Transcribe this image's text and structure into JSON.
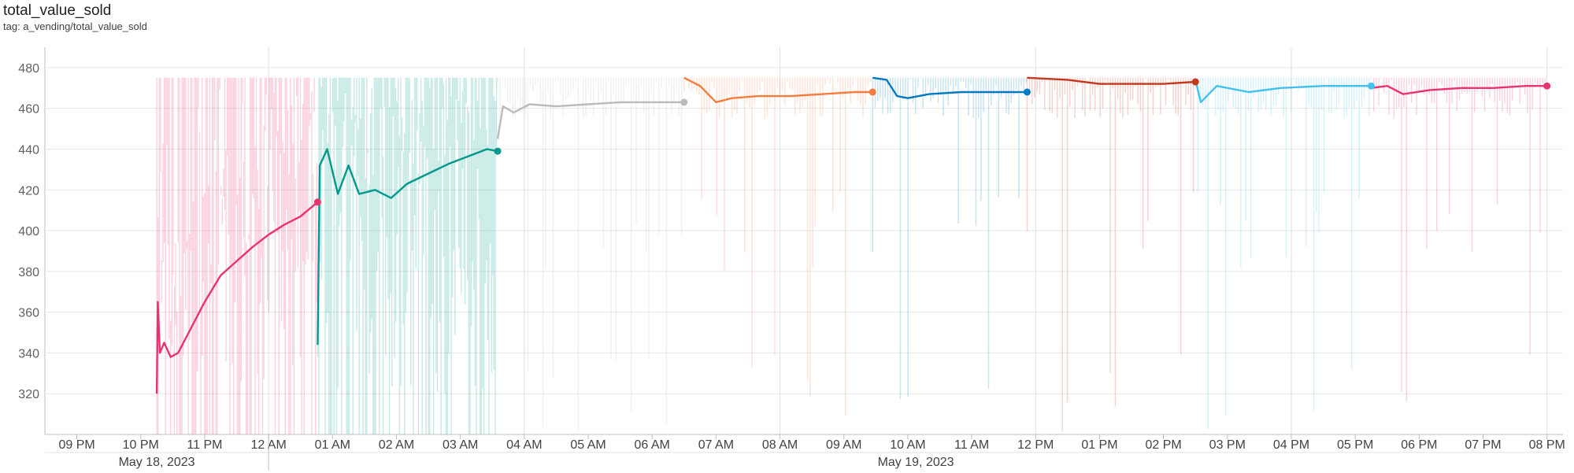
{
  "header": {
    "title": "total_value_sold",
    "tag": "tag: a_vending/total_value_sold"
  },
  "chart_data": {
    "type": "line",
    "title": "total_value_sold",
    "subtitle": "tag: a_vending/total_value_sold",
    "ylim": [
      300,
      490
    ],
    "yticks": [
      320,
      340,
      360,
      380,
      400,
      420,
      440,
      460,
      480
    ],
    "x_hour_ticks": [
      "09 PM",
      "10 PM",
      "11 PM",
      "12 AM",
      "01 AM",
      "02 AM",
      "03 AM",
      "04 AM",
      "05 AM",
      "06 AM",
      "07 AM",
      "08 AM",
      "09 AM",
      "10 AM",
      "11 AM",
      "12 PM",
      "01 PM",
      "02 PM",
      "03 PM",
      "04 PM",
      "05 PM",
      "06 PM",
      "07 PM",
      "08 PM"
    ],
    "x_date_labels": [
      "May 18, 2023",
      "May 19, 2023"
    ],
    "x_range": [
      "2023-05-18 20:30",
      "2023-05-19 20:15"
    ],
    "grid": true,
    "legend": "none",
    "series": [
      {
        "color": "#e8336e",
        "start": "2023-05-18 22:15",
        "end": "2023-05-19 00:46",
        "points": [
          [
            "22:15",
            320
          ],
          [
            "22:16",
            365
          ],
          [
            "22:18",
            340
          ],
          [
            "22:22",
            345
          ],
          [
            "22:28",
            338
          ],
          [
            "22:35",
            340
          ],
          [
            "22:45",
            350
          ],
          [
            "23:00",
            365
          ],
          [
            "23:15",
            378
          ],
          [
            "23:30",
            385
          ],
          [
            "23:45",
            392
          ],
          [
            "00:00",
            398
          ],
          [
            "00:15",
            403
          ],
          [
            "00:30",
            407
          ],
          [
            "00:46",
            414
          ]
        ]
      },
      {
        "color": "#00998c",
        "start": "2023-05-19 00:46",
        "end": "2023-05-19 03:35",
        "points": [
          [
            "00:46",
            344
          ],
          [
            "00:48",
            432
          ],
          [
            "00:55",
            440
          ],
          [
            "01:05",
            418
          ],
          [
            "01:15",
            432
          ],
          [
            "01:25",
            418
          ],
          [
            "01:40",
            420
          ],
          [
            "01:55",
            416
          ],
          [
            "02:10",
            423
          ],
          [
            "02:30",
            428
          ],
          [
            "02:50",
            433
          ],
          [
            "03:10",
            437
          ],
          [
            "03:25",
            440
          ],
          [
            "03:35",
            439
          ]
        ]
      },
      {
        "color": "#bbbbbb",
        "start": "2023-05-19 03:35",
        "end": "2023-05-19 06:30",
        "points": [
          [
            "03:35",
            445
          ],
          [
            "03:40",
            461
          ],
          [
            "03:50",
            458
          ],
          [
            "04:05",
            462
          ],
          [
            "04:30",
            461
          ],
          [
            "05:00",
            462
          ],
          [
            "05:30",
            463
          ],
          [
            "06:00",
            463
          ],
          [
            "06:30",
            463
          ]
        ]
      },
      {
        "color": "#f47d3e",
        "start": "2023-05-19 06:30",
        "end": "2023-05-19 09:27",
        "points": [
          [
            "06:30",
            475
          ],
          [
            "06:45",
            471
          ],
          [
            "07:00",
            463
          ],
          [
            "07:15",
            465
          ],
          [
            "07:40",
            466
          ],
          [
            "08:10",
            466
          ],
          [
            "08:40",
            467
          ],
          [
            "09:10",
            468
          ],
          [
            "09:27",
            468
          ]
        ]
      },
      {
        "color": "#0079c0",
        "start": "2023-05-19 09:27",
        "end": "2023-05-19 11:52",
        "points": [
          [
            "09:27",
            475
          ],
          [
            "09:40",
            474
          ],
          [
            "09:50",
            466
          ],
          [
            "10:00",
            465
          ],
          [
            "10:20",
            467
          ],
          [
            "10:50",
            468
          ],
          [
            "11:20",
            468
          ],
          [
            "11:52",
            468
          ]
        ]
      },
      {
        "color": "#c2371e",
        "start": "2023-05-19 11:52",
        "end": "2023-05-19 14:30",
        "points": [
          [
            "11:52",
            475
          ],
          [
            "12:30",
            474
          ],
          [
            "13:00",
            472
          ],
          [
            "13:30",
            472
          ],
          [
            "14:00",
            472
          ],
          [
            "14:30",
            473
          ]
        ]
      },
      {
        "color": "#44c0ef",
        "start": "2023-05-19 14:30",
        "end": "2023-05-19 17:15",
        "points": [
          [
            "14:30",
            474
          ],
          [
            "14:35",
            463
          ],
          [
            "14:50",
            471
          ],
          [
            "15:20",
            468
          ],
          [
            "15:50",
            470
          ],
          [
            "16:30",
            471
          ],
          [
            "17:00",
            471
          ],
          [
            "17:15",
            471
          ]
        ]
      },
      {
        "color": "#e8336e",
        "start": "2023-05-19 17:15",
        "end": "2023-05-19 20:00",
        "points": [
          [
            "17:15",
            470
          ],
          [
            "17:30",
            471
          ],
          [
            "17:45",
            467
          ],
          [
            "18:10",
            469
          ],
          [
            "18:40",
            470
          ],
          [
            "19:10",
            470
          ],
          [
            "19:40",
            471
          ],
          [
            "20:00",
            471
          ]
        ]
      }
    ]
  }
}
